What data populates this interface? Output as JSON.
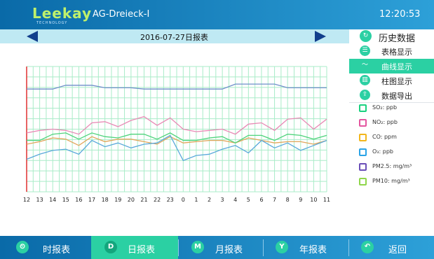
{
  "header": {
    "logo_text": "Leekay",
    "logo_sub": "TECHNOLOGY",
    "device_name": "AG-Dreieck-I",
    "time": "12:20:53"
  },
  "datebar": {
    "date_label": "2016-07-27日报表"
  },
  "side_panel": {
    "title": "历史数据",
    "menu": [
      {
        "label": "表格显示",
        "icon": "list-icon",
        "active": false
      },
      {
        "label": "曲线显示",
        "icon": "line-chart-icon",
        "active": true
      },
      {
        "label": "柱图显示",
        "icon": "bar-chart-icon",
        "active": false
      },
      {
        "label": "数据导出",
        "icon": "export-icon",
        "active": false
      }
    ],
    "legend": [
      {
        "label": "SO₂: ppb",
        "color": "#19d17f"
      },
      {
        "label": "NO₂: ppb",
        "color": "#e4559f"
      },
      {
        "label": "CO: ppm",
        "color": "#f2b61c"
      },
      {
        "label": "O₃: ppb",
        "color": "#2aa3e6"
      },
      {
        "label": "PM2.5: mg/m³",
        "color": "#6b4fb8"
      },
      {
        "label": "PM10: mg/m³",
        "color": "#8fd64b"
      }
    ]
  },
  "bottom_nav": [
    {
      "label": "时报表",
      "letter": "",
      "icon": "clock-icon",
      "active": false
    },
    {
      "label": "日报表",
      "letter": "D",
      "icon": "day-icon",
      "active": true
    },
    {
      "label": "月报表",
      "letter": "M",
      "icon": "month-icon",
      "active": false
    },
    {
      "label": "年报表",
      "letter": "Y",
      "icon": "year-icon",
      "active": false
    },
    {
      "label": "返回",
      "letter": "↶",
      "icon": "back-icon",
      "active": false
    }
  ],
  "chart_data": {
    "type": "line",
    "x": [
      "12",
      "13",
      "14",
      "15",
      "16",
      "17",
      "18",
      "19",
      "20",
      "21",
      "22",
      "23",
      "0",
      "1",
      "2",
      "3",
      "4",
      "5",
      "6",
      "7",
      "8",
      "9",
      "10",
      "11"
    ],
    "grid": true,
    "series": [
      {
        "color": "#6f8fc9",
        "values": [
          82,
          82,
          82,
          85,
          85,
          85,
          83,
          83,
          83,
          82,
          82,
          82,
          82,
          82,
          82,
          82,
          86,
          86,
          86,
          86,
          83,
          83,
          83,
          83
        ]
      },
      {
        "color": "#e88ab5",
        "values": [
          47,
          49,
          50,
          49,
          46,
          55,
          56,
          52,
          57,
          60,
          53,
          59,
          50,
          48,
          49,
          50,
          46,
          54,
          55,
          49,
          58,
          59,
          50,
          58
        ]
      },
      {
        "color": "#e1a55a",
        "values": [
          38,
          40,
          43,
          42,
          37,
          44,
          40,
          42,
          42,
          40,
          38,
          44,
          39,
          40,
          41,
          41,
          39,
          43,
          41,
          39,
          40,
          40,
          38,
          41
        ]
      },
      {
        "color": "#4fd37b",
        "values": [
          41,
          41,
          46,
          47,
          42,
          47,
          44,
          43,
          46,
          46,
          42,
          47,
          41,
          41,
          43,
          44,
          39,
          45,
          45,
          41,
          46,
          45,
          42,
          45
        ]
      },
      {
        "color": "#5aa8da",
        "values": [
          26,
          30,
          33,
          34,
          30,
          41,
          36,
          39,
          35,
          38,
          39,
          45,
          25,
          29,
          30,
          34,
          37,
          31,
          41,
          35,
          39,
          33,
          37,
          41
        ]
      }
    ]
  }
}
